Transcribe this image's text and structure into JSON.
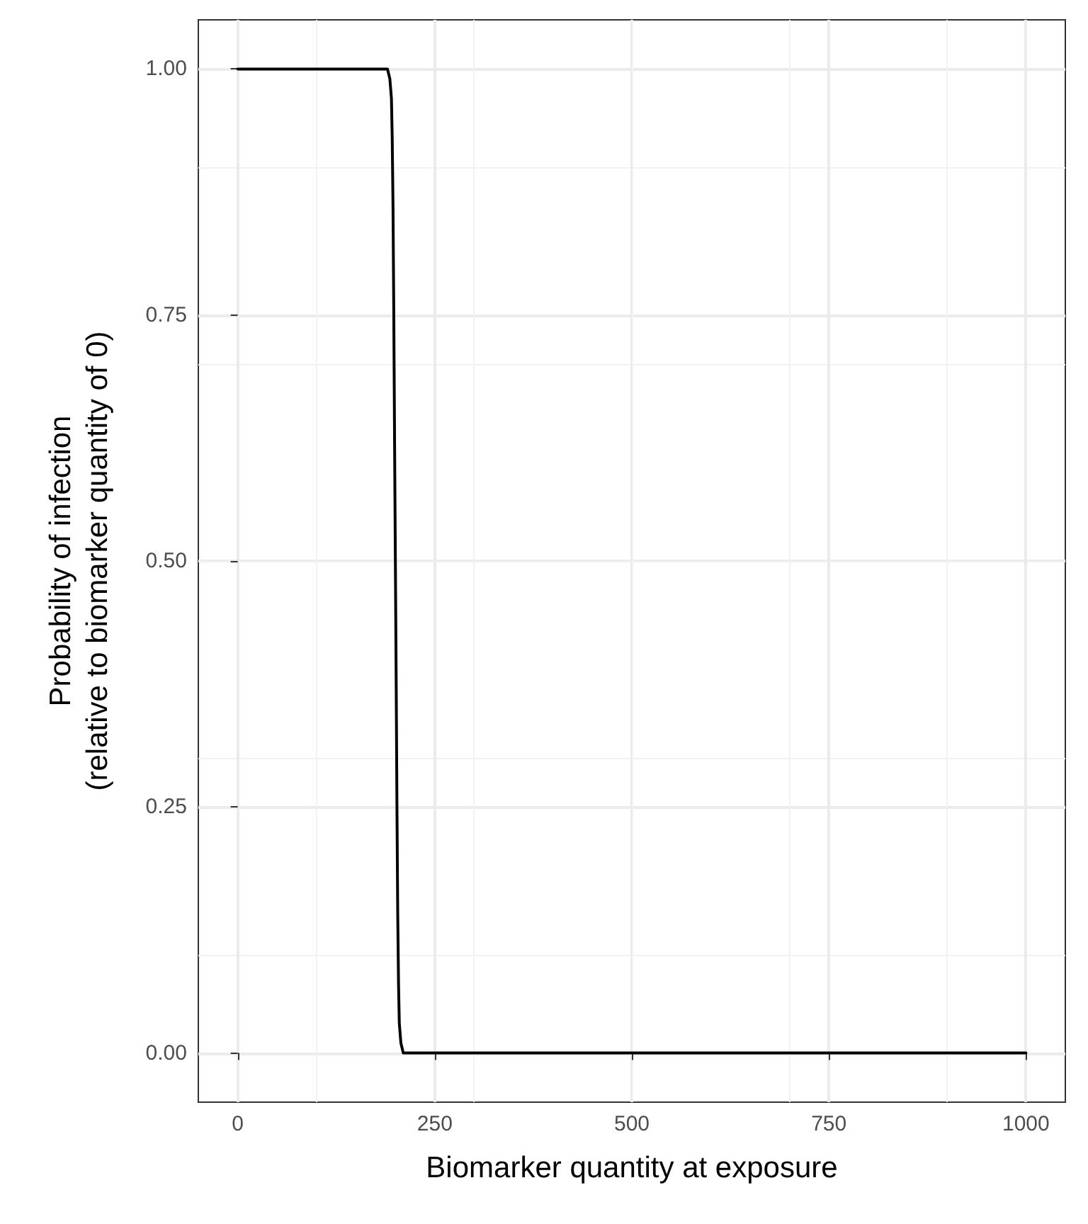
{
  "chart_data": {
    "type": "line",
    "xlabel": "Biomarker quantity at exposure",
    "ylabel": "Probability of infection\n(relative to biomarker quantity of 0)",
    "x": [
      0,
      190,
      193,
      195,
      196,
      197,
      198,
      199,
      200,
      201,
      202,
      203,
      204,
      205,
      207,
      210,
      1000
    ],
    "series": [
      {
        "color": "#000000",
        "values": [
          1,
          1,
          0.99,
          0.97,
          0.93,
          0.86,
          0.75,
          0.62,
          0.5,
          0.38,
          0.25,
          0.14,
          0.07,
          0.03,
          0.01,
          0,
          0
        ]
      }
    ],
    "xlim": [
      -50,
      1050
    ],
    "xticks": [
      0,
      250,
      500,
      750,
      1000
    ],
    "ylim": [
      -0.05,
      1.05
    ],
    "yticks": [
      {
        "value": 0,
        "label": "0.00"
      },
      0.25,
      {
        "value": 0.5,
        "label": "0.50"
      },
      0.75,
      {
        "value": 1,
        "label": "1.00"
      }
    ],
    "grid": true,
    "marker": "none",
    "line_style": "solid"
  }
}
